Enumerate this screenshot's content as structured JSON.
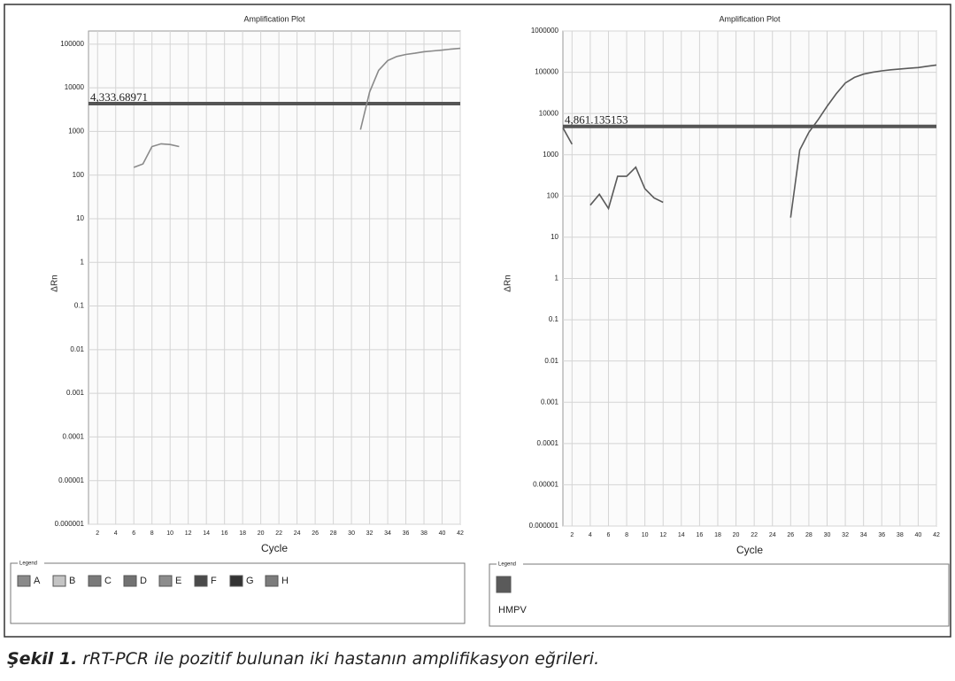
{
  "caption": {
    "label": "Şekil 1.",
    "text": "rRT-PCR ile pozitif bulunan iki hastanın amplifikasyon eğrileri."
  },
  "chart_data": [
    {
      "type": "line",
      "title": "Amplification Plot",
      "x_label": "Cycle",
      "y_label": "ΔRn",
      "log_y": true,
      "grid": true,
      "xlim": [
        1,
        42
      ],
      "xticks": [
        2,
        4,
        6,
        8,
        10,
        12,
        14,
        16,
        18,
        20,
        22,
        24,
        26,
        28,
        30,
        32,
        34,
        36,
        38,
        40,
        42
      ],
      "ylim": [
        1e-06,
        200000
      ],
      "yticks": [
        1e-06,
        1e-05,
        0.0001,
        0.001,
        0.01,
        0.1,
        1,
        10,
        100,
        1000,
        10000,
        100000
      ],
      "threshold": {
        "value": 4333.68971,
        "label": "4,333.68971"
      },
      "legend_title": "Legend",
      "x": [
        6,
        7,
        8,
        9,
        10,
        11,
        12,
        31,
        32,
        33,
        34,
        35,
        36,
        37,
        38,
        39,
        40,
        41,
        42
      ],
      "series": [
        {
          "name": "A",
          "color": "#8a8a8a",
          "values": [
            150,
            180,
            450,
            520,
            500,
            450,
            null,
            1100,
            8000,
            25000,
            42000,
            52000,
            58000,
            62000,
            67000,
            70000,
            73000,
            77000,
            80000
          ]
        },
        {
          "name": "B",
          "color": "#c4c4c4",
          "values": [
            null,
            null,
            null,
            null,
            null,
            null,
            null,
            null,
            null,
            null,
            null,
            null,
            null,
            null,
            null,
            null,
            null,
            null,
            null
          ]
        },
        {
          "name": "C",
          "color": "#7a7a7a",
          "values": [
            null,
            null,
            null,
            null,
            null,
            null,
            null,
            null,
            null,
            null,
            null,
            null,
            null,
            null,
            null,
            null,
            null,
            null,
            null
          ]
        },
        {
          "name": "D",
          "color": "#727272",
          "values": [
            null,
            null,
            null,
            null,
            null,
            null,
            null,
            null,
            null,
            null,
            null,
            null,
            null,
            null,
            null,
            null,
            null,
            null,
            null
          ]
        },
        {
          "name": "E",
          "color": "#8c8c8c",
          "values": [
            null,
            null,
            null,
            null,
            null,
            null,
            null,
            null,
            null,
            null,
            null,
            null,
            null,
            null,
            null,
            null,
            null,
            null,
            null
          ]
        },
        {
          "name": "F",
          "color": "#4a4a4a",
          "values": [
            null,
            null,
            null,
            null,
            null,
            null,
            null,
            null,
            null,
            null,
            null,
            null,
            null,
            null,
            null,
            null,
            null,
            null,
            null
          ]
        },
        {
          "name": "G",
          "color": "#333333",
          "values": [
            null,
            null,
            null,
            null,
            null,
            null,
            null,
            null,
            null,
            null,
            null,
            null,
            null,
            null,
            null,
            null,
            null,
            null,
            null
          ]
        },
        {
          "name": "H",
          "color": "#7c7c7c",
          "values": [
            null,
            null,
            null,
            null,
            null,
            null,
            null,
            null,
            null,
            null,
            null,
            null,
            null,
            null,
            null,
            null,
            null,
            null,
            null
          ]
        }
      ]
    },
    {
      "type": "line",
      "title": "Amplification Plot",
      "x_label": "Cycle",
      "y_label": "ΔRn",
      "log_y": true,
      "grid": true,
      "xlim": [
        1,
        42
      ],
      "xticks": [
        2,
        4,
        6,
        8,
        10,
        12,
        14,
        16,
        18,
        20,
        22,
        24,
        26,
        28,
        30,
        32,
        34,
        36,
        38,
        40,
        42
      ],
      "ylim": [
        1e-06,
        1000000
      ],
      "yticks": [
        1e-06,
        1e-05,
        0.0001,
        0.001,
        0.01,
        0.1,
        1,
        10,
        100,
        1000,
        10000,
        100000,
        1000000
      ],
      "threshold": {
        "value": 4861.135153,
        "label": "4,861.135153"
      },
      "legend_title": "Legend",
      "x": [
        1,
        2,
        3,
        4,
        5,
        6,
        7,
        8,
        9,
        10,
        11,
        12,
        13,
        26,
        27,
        28,
        29,
        30,
        31,
        32,
        33,
        34,
        35,
        36,
        37,
        38,
        39,
        40,
        41,
        42
      ],
      "series": [
        {
          "name": "HMPV",
          "color": "#5a5a5a",
          "values": [
            4500,
            1800,
            null,
            60,
            110,
            50,
            300,
            300,
            500,
            150,
            90,
            70,
            null,
            30,
            1300,
            3500,
            7000,
            15000,
            30000,
            55000,
            75000,
            90000,
            100000,
            108000,
            115000,
            120000,
            125000,
            130000,
            140000,
            150000
          ]
        }
      ]
    }
  ]
}
